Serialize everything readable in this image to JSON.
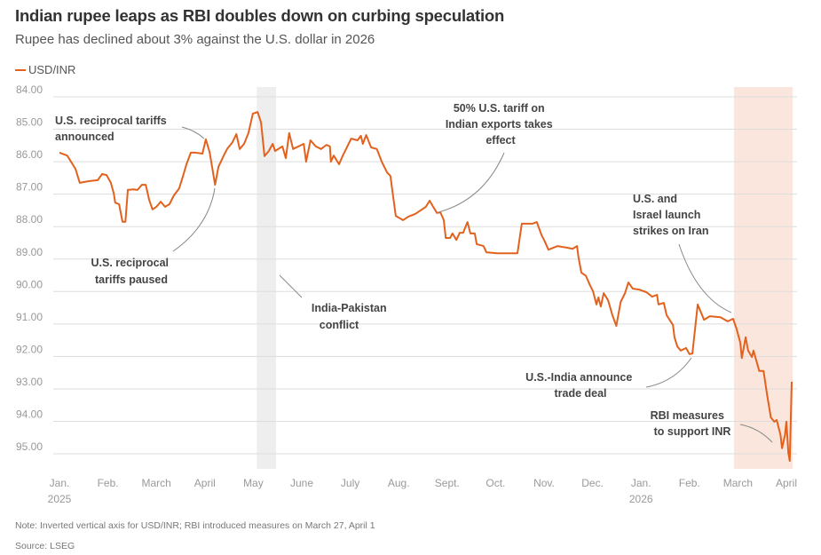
{
  "header": {
    "title": "Indian rupee leaps as RBI doubles down on curbing speculation",
    "subtitle": "Rupee has declined about 3% against the U.S. dollar in 2026"
  },
  "footer": {
    "note": "Note: Inverted vertical axis for USD/INR; RBI introduced measures on March 27, April 1",
    "source": "Source: LSEG"
  },
  "chart_data": {
    "type": "line",
    "title": "Indian rupee leaps as RBI doubles down on curbing speculation",
    "xlabel": "",
    "ylabel": "",
    "ylim": [
      84,
      95
    ],
    "y_inverted": true,
    "grid": true,
    "legend": {
      "position": "top-left",
      "entries": [
        "USD/INR"
      ]
    },
    "colors": {
      "line": "#e2621d",
      "grid": "#dddddd",
      "shade_conflict": "#eeeeee",
      "shade_iran": "#fbe6dd",
      "arrow": "#888888"
    },
    "y_ticks": [
      "84.00",
      "85.00",
      "86.00",
      "87.00",
      "88.00",
      "89.00",
      "90.00",
      "91.00",
      "92.00",
      "93.00",
      "94.00",
      "95.00"
    ],
    "x_ticks": [
      {
        "label": "Jan.",
        "year": "2025"
      },
      {
        "label": "Feb."
      },
      {
        "label": "March"
      },
      {
        "label": "April"
      },
      {
        "label": "May"
      },
      {
        "label": "June"
      },
      {
        "label": "July"
      },
      {
        "label": "Aug."
      },
      {
        "label": "Sept."
      },
      {
        "label": "Oct."
      },
      {
        "label": "Nov."
      },
      {
        "label": "Dec."
      },
      {
        "label": "Jan.",
        "year": "2026"
      },
      {
        "label": "Feb."
      },
      {
        "label": "March"
      },
      {
        "label": "April"
      }
    ],
    "x_unit": "months since Jan 1 2025",
    "shaded_periods": [
      {
        "name": "India-Pakistan conflict",
        "from": 4.07,
        "to": 4.47
      },
      {
        "name": "U.S./Israel strikes on Iran",
        "from": 13.92,
        "to": 15.13
      }
    ],
    "series": [
      {
        "name": "USD/INR",
        "points": [
          [
            0,
            85.72
          ],
          [
            0.16,
            85.81
          ],
          [
            0.33,
            86.22
          ],
          [
            0.42,
            86.65
          ],
          [
            0.6,
            86.6
          ],
          [
            0.79,
            86.57
          ],
          [
            0.88,
            86.38
          ],
          [
            0.97,
            86.41
          ],
          [
            1.06,
            86.65
          ],
          [
            1.12,
            86.98
          ],
          [
            1.15,
            87.26
          ],
          [
            1.23,
            87.31
          ],
          [
            1.3,
            87.85
          ],
          [
            1.36,
            87.85
          ],
          [
            1.41,
            86.87
          ],
          [
            1.52,
            86.85
          ],
          [
            1.61,
            86.87
          ],
          [
            1.7,
            86.71
          ],
          [
            1.78,
            86.71
          ],
          [
            1.85,
            87.17
          ],
          [
            1.92,
            87.47
          ],
          [
            2.0,
            87.39
          ],
          [
            2.09,
            87.23
          ],
          [
            2.18,
            87.39
          ],
          [
            2.27,
            87.31
          ],
          [
            2.36,
            87.04
          ],
          [
            2.47,
            86.82
          ],
          [
            2.55,
            86.44
          ],
          [
            2.62,
            86.08
          ],
          [
            2.71,
            85.72
          ],
          [
            2.8,
            85.72
          ],
          [
            2.95,
            85.75
          ],
          [
            3.02,
            85.31
          ],
          [
            3.1,
            85.72
          ],
          [
            3.21,
            86.71
          ],
          [
            3.28,
            86.16
          ],
          [
            3.39,
            85.81
          ],
          [
            3.46,
            85.61
          ],
          [
            3.57,
            85.4
          ],
          [
            3.65,
            85.15
          ],
          [
            3.72,
            85.61
          ],
          [
            3.81,
            85.45
          ],
          [
            3.9,
            85.12
          ],
          [
            3.99,
            84.52
          ],
          [
            4.09,
            84.47
          ],
          [
            4.16,
            84.79
          ],
          [
            4.23,
            85.83
          ],
          [
            4.32,
            85.67
          ],
          [
            4.4,
            85.45
          ],
          [
            4.45,
            85.67
          ],
          [
            4.6,
            85.53
          ],
          [
            4.67,
            85.89
          ],
          [
            4.74,
            85.12
          ],
          [
            4.82,
            85.61
          ],
          [
            5.04,
            85.45
          ],
          [
            5.09,
            86.0
          ],
          [
            5.18,
            85.34
          ],
          [
            5.29,
            85.53
          ],
          [
            5.4,
            85.61
          ],
          [
            5.51,
            85.48
          ],
          [
            5.58,
            85.53
          ],
          [
            5.6,
            86.0
          ],
          [
            5.66,
            85.81
          ],
          [
            5.77,
            86.08
          ],
          [
            5.84,
            85.83
          ],
          [
            6.02,
            85.29
          ],
          [
            6.15,
            85.34
          ],
          [
            6.22,
            85.2
          ],
          [
            6.26,
            85.45
          ],
          [
            6.33,
            85.18
          ],
          [
            6.43,
            85.56
          ],
          [
            6.55,
            85.61
          ],
          [
            6.65,
            86.0
          ],
          [
            6.76,
            86.33
          ],
          [
            6.83,
            86.44
          ],
          [
            6.87,
            86.9
          ],
          [
            6.94,
            87.67
          ],
          [
            7.09,
            87.8
          ],
          [
            7.2,
            87.69
          ],
          [
            7.34,
            87.61
          ],
          [
            7.45,
            87.5
          ],
          [
            7.56,
            87.39
          ],
          [
            7.64,
            87.2
          ],
          [
            7.71,
            87.39
          ],
          [
            7.79,
            87.58
          ],
          [
            7.86,
            87.56
          ],
          [
            7.93,
            87.8
          ],
          [
            7.97,
            88.35
          ],
          [
            8.06,
            88.35
          ],
          [
            8.11,
            88.21
          ],
          [
            8.19,
            88.41
          ],
          [
            8.26,
            88.19
          ],
          [
            8.33,
            88.19
          ],
          [
            8.42,
            87.86
          ],
          [
            8.48,
            88.21
          ],
          [
            8.57,
            88.21
          ],
          [
            8.61,
            88.54
          ],
          [
            8.75,
            88.6
          ],
          [
            8.81,
            88.79
          ],
          [
            9.03,
            88.82
          ],
          [
            9.45,
            88.82
          ],
          [
            9.54,
            87.91
          ],
          [
            9.76,
            87.91
          ],
          [
            9.85,
            87.86
          ],
          [
            9.95,
            88.27
          ],
          [
            10.0,
            88.41
          ],
          [
            10.09,
            88.71
          ],
          [
            10.28,
            88.6
          ],
          [
            10.59,
            88.68
          ],
          [
            10.68,
            88.6
          ],
          [
            10.71,
            88.95
          ],
          [
            10.77,
            89.42
          ],
          [
            10.86,
            89.51
          ],
          [
            10.94,
            89.78
          ],
          [
            11.01,
            89.99
          ],
          [
            11.08,
            90.4
          ],
          [
            11.12,
            90.18
          ],
          [
            11.17,
            90.46
          ],
          [
            11.23,
            90.05
          ],
          [
            11.32,
            90.27
          ],
          [
            11.41,
            90.73
          ],
          [
            11.49,
            91.06
          ],
          [
            11.58,
            90.32
          ],
          [
            11.67,
            90.05
          ],
          [
            11.74,
            89.72
          ],
          [
            11.83,
            89.91
          ],
          [
            11.96,
            89.94
          ],
          [
            12.11,
            90.02
          ],
          [
            12.23,
            90.16
          ],
          [
            12.33,
            90.1
          ],
          [
            12.36,
            90.4
          ],
          [
            12.47,
            90.35
          ],
          [
            12.53,
            90.73
          ],
          [
            12.66,
            91.03
          ],
          [
            12.69,
            91.41
          ],
          [
            12.75,
            91.69
          ],
          [
            12.82,
            91.82
          ],
          [
            12.93,
            91.74
          ],
          [
            13.0,
            91.93
          ],
          [
            13.06,
            91.91
          ],
          [
            13.17,
            90.4
          ],
          [
            13.24,
            90.65
          ],
          [
            13.3,
            90.87
          ],
          [
            13.42,
            90.76
          ],
          [
            13.64,
            90.79
          ],
          [
            13.79,
            90.92
          ],
          [
            13.9,
            90.84
          ],
          [
            13.97,
            91.14
          ],
          [
            14.05,
            91.58
          ],
          [
            14.08,
            92.05
          ],
          [
            14.16,
            91.41
          ],
          [
            14.21,
            91.82
          ],
          [
            14.29,
            92.02
          ],
          [
            14.32,
            91.82
          ],
          [
            14.4,
            92.23
          ],
          [
            14.44,
            92.45
          ],
          [
            14.53,
            92.45
          ],
          [
            14.6,
            93.17
          ],
          [
            14.68,
            93.88
          ],
          [
            14.75,
            94.01
          ],
          [
            14.8,
            93.96
          ],
          [
            14.88,
            94.42
          ],
          [
            14.91,
            94.83
          ],
          [
            14.97,
            94.42
          ],
          [
            15.0,
            94.01
          ],
          [
            15.04,
            94.97
          ],
          [
            15.07,
            95.22
          ],
          [
            15.11,
            92.78
          ]
        ]
      }
    ],
    "annotations": [
      {
        "lines": [
          "U.S. reciprocal tariffs",
          "announced"
        ]
      },
      {
        "lines": [
          "U.S. reciprocal",
          "tariffs paused"
        ]
      },
      {
        "lines": [
          "India-Pakistan",
          "conflict"
        ]
      },
      {
        "lines": [
          "50% U.S. tariff on",
          "Indian exports takes",
          "effect"
        ]
      },
      {
        "lines": [
          "U.S. and",
          "Israel launch",
          "strikes on Iran"
        ]
      },
      {
        "lines": [
          "U.S.-India announce",
          "trade deal"
        ]
      },
      {
        "lines": [
          "RBI measures",
          "to support INR"
        ]
      }
    ]
  }
}
